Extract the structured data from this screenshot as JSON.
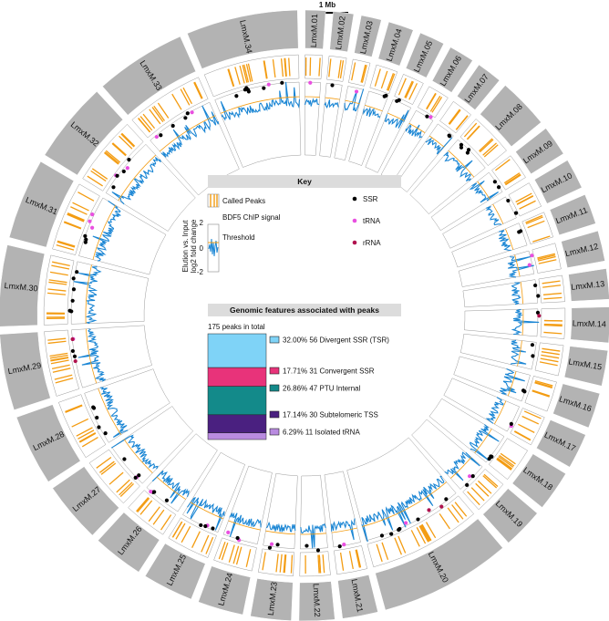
{
  "scale_bar": {
    "label": "1 Mb"
  },
  "chromosomes": [
    {
      "name": "LmxM.01",
      "size": 2
    },
    {
      "name": "LmxM.02",
      "size": 2
    },
    {
      "name": "LmxM.03",
      "size": 2
    },
    {
      "name": "LmxM.04",
      "size": 2.5
    },
    {
      "name": "LmxM.05",
      "size": 2.5
    },
    {
      "name": "LmxM.06",
      "size": 2.5
    },
    {
      "name": "LmxM.07",
      "size": 2.5
    },
    {
      "name": "LmxM.08",
      "size": 5
    },
    {
      "name": "LmxM.09",
      "size": 3
    },
    {
      "name": "LmxM.10",
      "size": 3
    },
    {
      "name": "LmxM.11",
      "size": 3
    },
    {
      "name": "LmxM.12",
      "size": 3
    },
    {
      "name": "LmxM.13",
      "size": 3
    },
    {
      "name": "LmxM.14",
      "size": 3.5
    },
    {
      "name": "LmxM.15",
      "size": 3.5
    },
    {
      "name": "LmxM.16",
      "size": 3.5
    },
    {
      "name": "LmxM.17",
      "size": 3.5
    },
    {
      "name": "LmxM.18",
      "size": 4
    },
    {
      "name": "LmxM.19",
      "size": 4
    },
    {
      "name": "LmxM.20",
      "size": 13
    },
    {
      "name": "LmxM.21",
      "size": 3.5
    },
    {
      "name": "LmxM.22",
      "size": 3.5
    },
    {
      "name": "LmxM.23",
      "size": 4
    },
    {
      "name": "LmxM.24",
      "size": 4.5
    },
    {
      "name": "LmxM.25",
      "size": 5
    },
    {
      "name": "LmxM.26",
      "size": 5
    },
    {
      "name": "LmxM.27",
      "size": 6
    },
    {
      "name": "LmxM.28",
      "size": 7
    },
    {
      "name": "LmxM.29",
      "size": 7.5
    },
    {
      "name": "LmxM.30",
      "size": 8
    },
    {
      "name": "LmxM.31",
      "size": 8
    },
    {
      "name": "LmxM.32",
      "size": 8
    },
    {
      "name": "LmxM.33",
      "size": 9
    },
    {
      "name": "LmxM.34",
      "size": 11
    }
  ],
  "key": {
    "title": "Key",
    "called_peaks": "Called Peaks",
    "chip_signal": "BDF5 ChIP signal",
    "threshold": "Threshold",
    "axis_label_1": "Elution vs. Input",
    "axis_label_2": "log2 fold change",
    "ticks": [
      "2",
      "0",
      "-2"
    ],
    "ssr": "SSR",
    "trna": "tRNA",
    "rrna": "rRNA"
  },
  "colors": {
    "ideogram": "#b3b3b3",
    "peaks": "#f39c12",
    "signal": "#1b86d4",
    "threshold": "#f39c12",
    "ssr": "#000000",
    "trna": "#e94fe0",
    "rrna": "#b0124e"
  },
  "features": {
    "title": "Genomic features associated with peaks",
    "total": "175 peaks in total",
    "items": [
      {
        "percent": "32.00%",
        "count": "56",
        "label": "Divergent SSR (TSR)",
        "color": "#7fd3f7",
        "fraction": 0.32
      },
      {
        "percent": "17.71%",
        "count": "31",
        "label": "Convergent SSR",
        "color": "#e8337a",
        "fraction": 0.1771
      },
      {
        "percent": "26.86%",
        "count": "47",
        "label": "PTU Internal",
        "color": "#138a8a",
        "fraction": 0.2686
      },
      {
        "percent": "17.14%",
        "count": "30",
        "label": "Subtelomeric TSS",
        "color": "#4a2080",
        "fraction": 0.1714
      },
      {
        "percent": "6.29%",
        "count": "11",
        "label": "Isolated tRNA",
        "color": "#b98be0",
        "fraction": 0.0629
      }
    ]
  }
}
